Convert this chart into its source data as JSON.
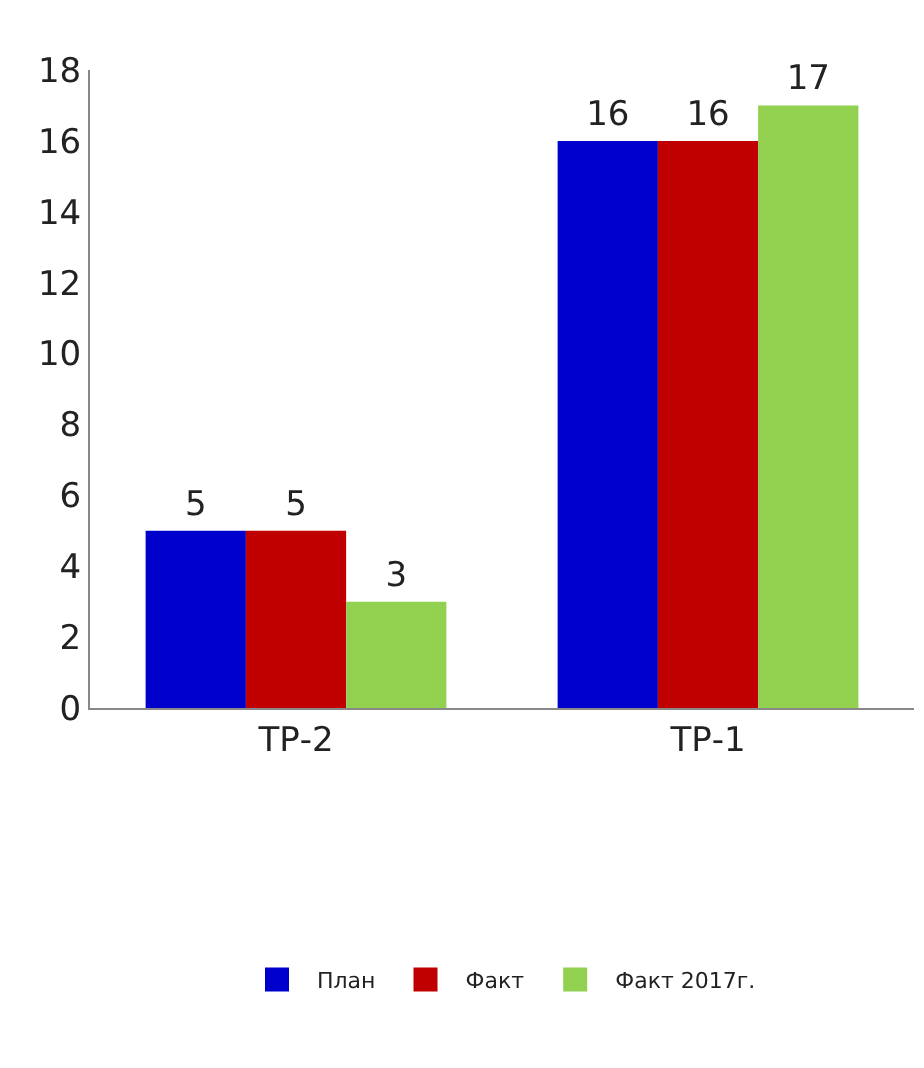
{
  "chart_data": {
    "type": "bar",
    "categories": [
      "ТР-2",
      "ТР-1"
    ],
    "series": [
      {
        "name": "План",
        "color": "#0000cc",
        "values": [
          5,
          16
        ]
      },
      {
        "name": "Факт",
        "color": "#c00000",
        "values": [
          5,
          16
        ]
      },
      {
        "name": "Факт 2017г.",
        "color": "#92d050",
        "values": [
          3,
          17
        ]
      }
    ],
    "ylim": [
      0,
      18
    ],
    "yticks": [
      0,
      2,
      4,
      6,
      8,
      10,
      12,
      14,
      16,
      18
    ],
    "grid": false,
    "legend": "bottom",
    "data_labels": true
  }
}
